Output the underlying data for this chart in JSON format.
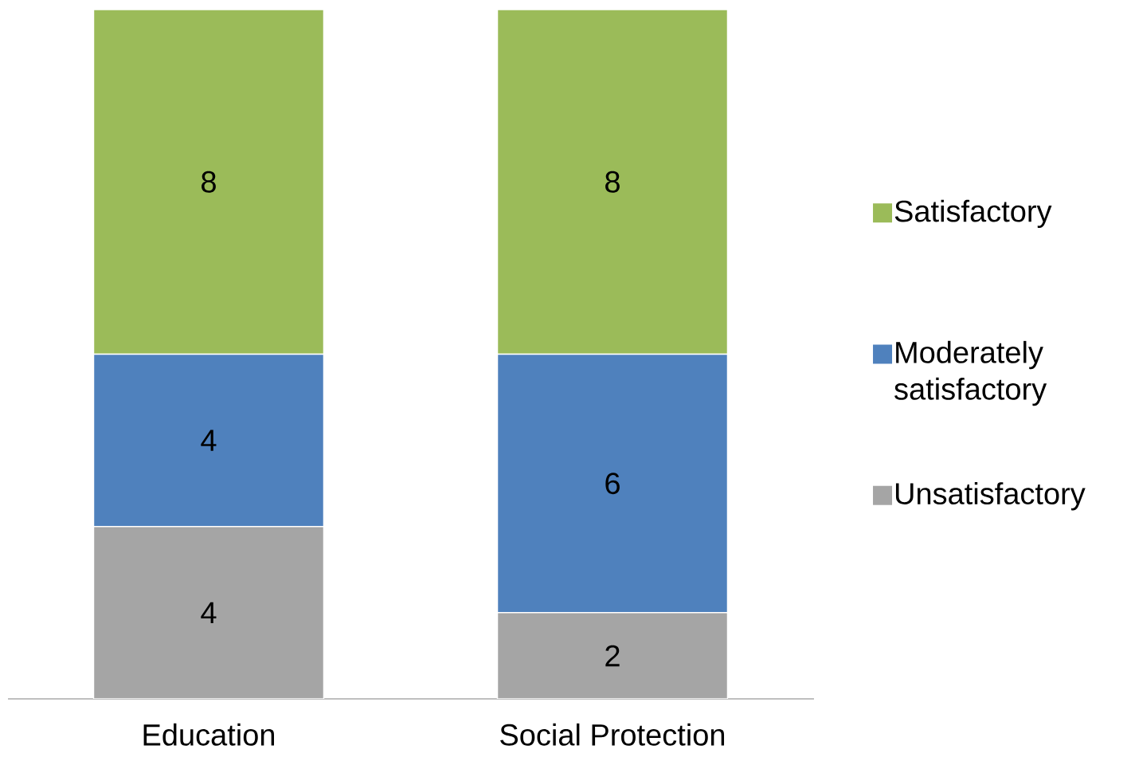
{
  "chart_data": {
    "type": "bar",
    "stacked": true,
    "data_labels": true,
    "legend": "right",
    "categories": [
      "Education",
      "Social Protection"
    ],
    "series": [
      {
        "name": "Unsatisfactory",
        "color": "#a5a5a5",
        "values": [
          4,
          2
        ]
      },
      {
        "name": "Moderately satisfactory",
        "color": "#4f81bd",
        "values": [
          4,
          6
        ]
      },
      {
        "name": "Satisfactory",
        "color": "#9bbb59",
        "values": [
          8,
          8
        ]
      }
    ]
  }
}
